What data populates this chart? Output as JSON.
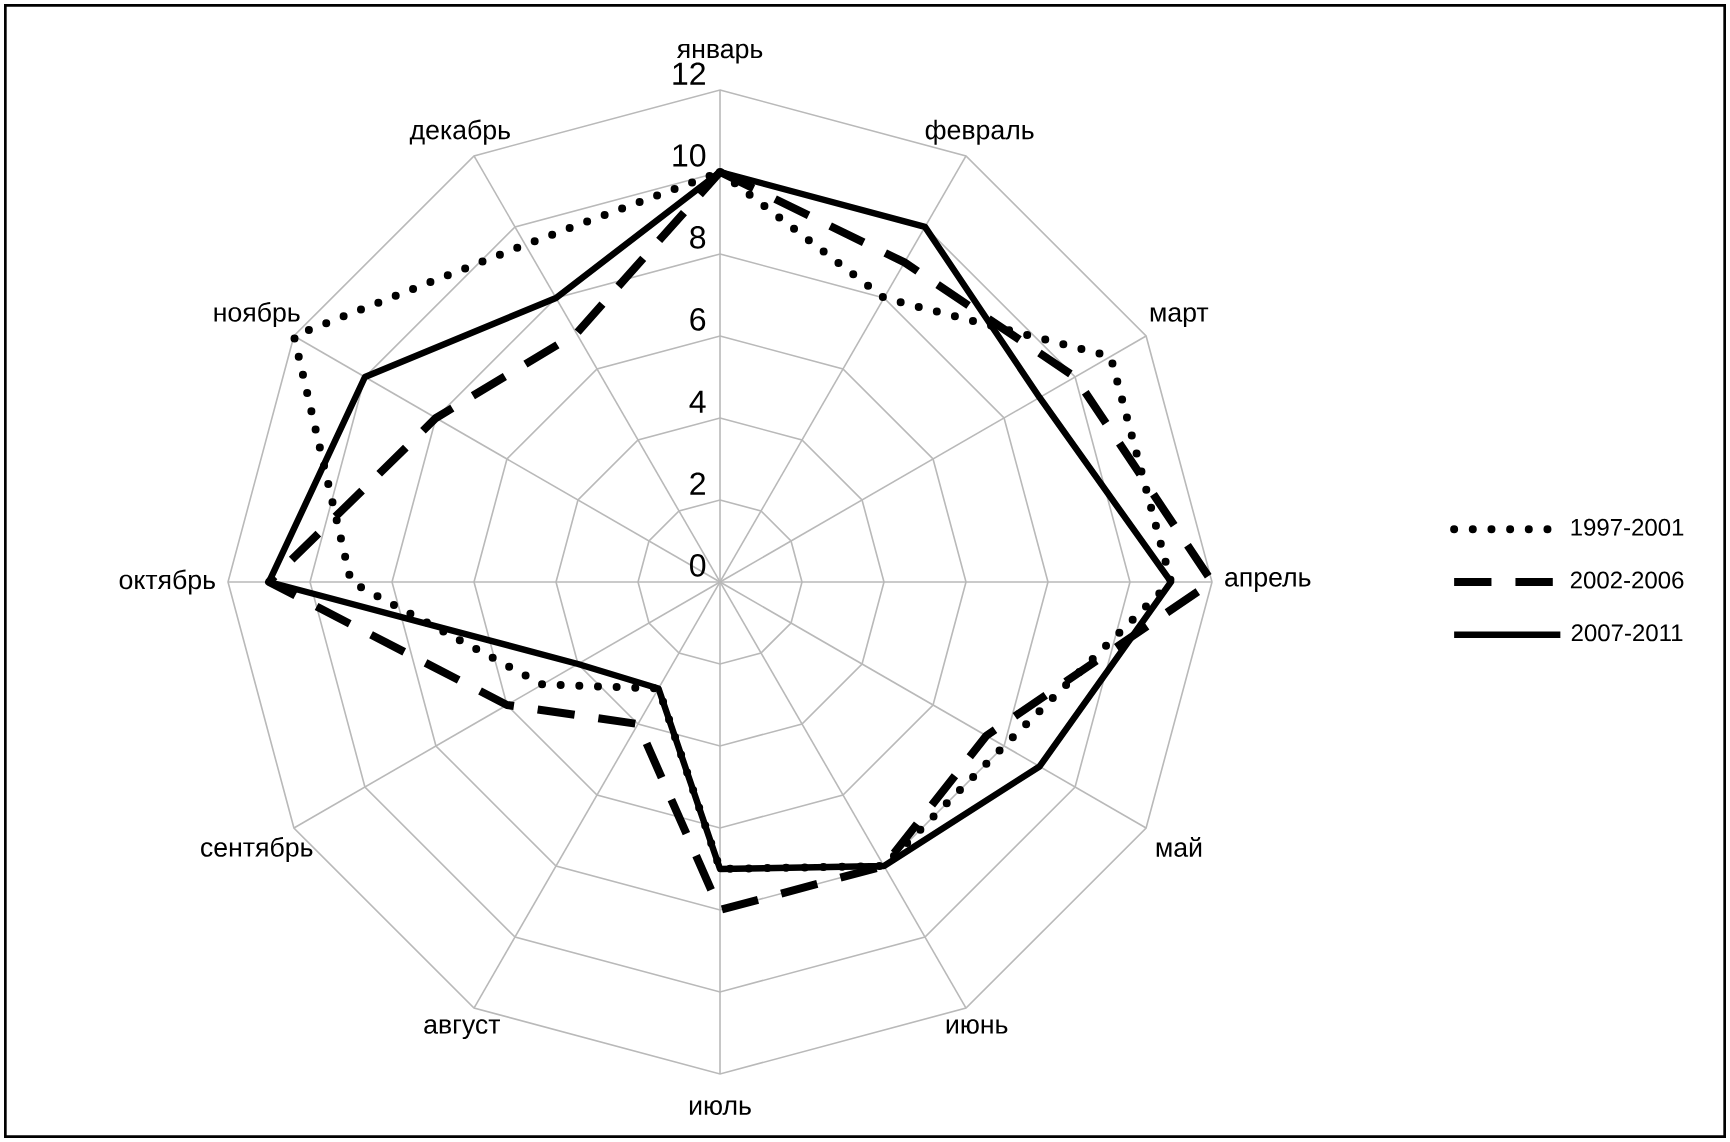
{
  "chart_data": {
    "type": "radar",
    "categories": [
      "январь",
      "февраль",
      "март",
      "апрель",
      "май",
      "июнь",
      "июль",
      "август",
      "сентябрь",
      "октябрь",
      "ноябрь",
      "декабрь"
    ],
    "series": [
      {
        "name": "1997-2001",
        "color": "#000000",
        "line_style": "dotted",
        "values": [
          10,
          8,
          11,
          11,
          8,
          8,
          7,
          3,
          5,
          9,
          12,
          9.5
        ]
      },
      {
        "name": "2002-2006",
        "color": "#000000",
        "line_style": "dashed",
        "values": [
          10,
          9,
          10,
          12,
          7.5,
          8,
          8,
          4,
          6,
          11,
          8,
          7
        ]
      },
      {
        "name": "2007-2011",
        "color": "#000000",
        "line_style": "solid",
        "values": [
          10,
          10,
          9,
          11,
          9,
          8,
          7,
          3,
          4,
          11,
          10,
          8
        ]
      }
    ],
    "ylim": [
      0,
      12
    ],
    "yticks": [
      0,
      2,
      4,
      6,
      8,
      10,
      12
    ],
    "grid": true,
    "legend": "right"
  }
}
